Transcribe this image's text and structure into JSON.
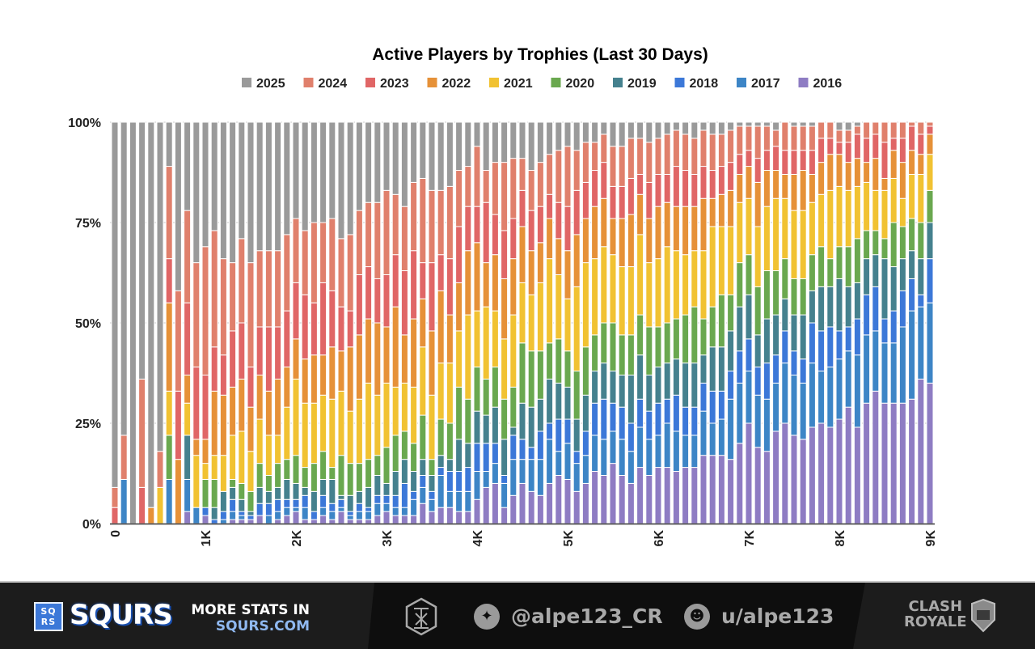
{
  "chart_data": {
    "type": "bar",
    "stacked": true,
    "normalized": true,
    "title": "Active Players by Trophies (Last 30 Days)",
    "xlabel": "",
    "ylabel": "",
    "ylim": [
      0,
      100
    ],
    "yticks": [
      "0%",
      "25%",
      "50%",
      "75%",
      "100%"
    ],
    "xticks": [
      "0",
      "1K",
      "2K",
      "3K",
      "4K",
      "5K",
      "6K",
      "7K",
      "8K",
      "9K"
    ],
    "x_range": [
      0,
      9000
    ],
    "x_step": 100,
    "grid": true,
    "legend_position": "top",
    "legend_order": [
      "2025",
      "2024",
      "2023",
      "2022",
      "2021",
      "2020",
      "2019",
      "2018",
      "2017",
      "2016"
    ],
    "series": [
      {
        "name": "2016",
        "color": "#8e7cc3",
        "values": [
          0,
          0,
          0,
          0,
          0,
          0,
          0,
          0,
          3,
          0,
          2,
          0,
          0,
          1,
          1,
          1,
          2,
          0,
          1,
          2,
          3,
          1,
          1,
          2,
          1,
          3,
          1,
          1,
          1,
          2,
          3,
          2,
          2,
          2,
          5,
          3,
          4,
          4,
          3,
          3,
          6,
          9,
          10,
          4,
          7,
          10,
          8,
          7,
          10,
          12,
          11,
          8,
          10,
          13,
          12,
          15,
          12,
          10,
          14,
          12,
          14,
          14,
          13,
          14,
          14,
          17,
          17,
          17,
          16,
          20,
          25,
          19,
          18,
          23,
          25,
          22,
          21,
          24,
          25,
          24,
          26,
          29,
          24,
          30,
          33,
          30,
          30,
          30,
          31,
          36,
          35
        ]
      },
      {
        "name": "2017",
        "color": "#3d85c6",
        "values": [
          0,
          11,
          0,
          0,
          0,
          0,
          11,
          0,
          8,
          4,
          0,
          0,
          1,
          2,
          1,
          0,
          0,
          2,
          2,
          2,
          1,
          3,
          0,
          2,
          2,
          1,
          1,
          2,
          2,
          3,
          2,
          2,
          2,
          4,
          4,
          3,
          8,
          4,
          5,
          5,
          7,
          4,
          5,
          6,
          9,
          6,
          8,
          9,
          11,
          6,
          9,
          7,
          7,
          9,
          9,
          8,
          9,
          8,
          10,
          9,
          8,
          11,
          10,
          8,
          8,
          11,
          8,
          9,
          15,
          15,
          13,
          13,
          13,
          12,
          15,
          15,
          14,
          16,
          13,
          15,
          15,
          14,
          18,
          17,
          15,
          15,
          15,
          19,
          22,
          18,
          20
        ]
      },
      {
        "name": "2018",
        "color": "#3c78d8",
        "values": [
          0,
          0,
          0,
          0,
          0,
          0,
          0,
          0,
          0,
          0,
          2,
          1,
          2,
          3,
          1,
          1,
          3,
          3,
          3,
          2,
          2,
          3,
          2,
          3,
          2,
          2,
          1,
          2,
          1,
          2,
          2,
          3,
          6,
          2,
          3,
          2,
          2,
          5,
          5,
          6,
          7,
          7,
          5,
          2,
          6,
          5,
          3,
          7,
          4,
          8,
          6,
          3,
          6,
          8,
          10,
          7,
          8,
          7,
          7,
          7,
          8,
          6,
          9,
          7,
          7,
          7,
          8,
          7,
          7,
          8,
          8,
          7,
          9,
          7,
          8,
          6,
          6,
          10,
          10,
          10,
          7,
          6,
          9,
          10,
          11,
          6,
          8,
          9,
          8,
          3,
          11
        ]
      },
      {
        "name": "2019",
        "color": "#45818e",
        "values": [
          0,
          0,
          0,
          0,
          0,
          0,
          0,
          0,
          11,
          0,
          0,
          3,
          5,
          3,
          3,
          1,
          4,
          3,
          3,
          5,
          4,
          2,
          5,
          4,
          6,
          1,
          4,
          3,
          5,
          5,
          3,
          6,
          6,
          5,
          4,
          4,
          3,
          3,
          8,
          6,
          8,
          7,
          9,
          9,
          2,
          9,
          10,
          8,
          11,
          9,
          8,
          8,
          9,
          8,
          9,
          8,
          8,
          12,
          11,
          9,
          9,
          9,
          9,
          11,
          11,
          7,
          11,
          11,
          10,
          11,
          11,
          8,
          11,
          10,
          8,
          9,
          11,
          8,
          11,
          10,
          13,
          10,
          9,
          9,
          8,
          15,
          11,
          8,
          7,
          9,
          9
        ]
      },
      {
        "name": "2020",
        "color": "#6aa84f",
        "values": [
          0,
          0,
          0,
          0,
          0,
          0,
          11,
          0,
          0,
          0,
          7,
          7,
          0,
          2,
          4,
          5,
          6,
          4,
          6,
          5,
          7,
          5,
          7,
          7,
          3,
          10,
          8,
          7,
          7,
          5,
          9,
          9,
          7,
          7,
          11,
          4,
          9,
          9,
          13,
          11,
          11,
          9,
          10,
          10,
          10,
          15,
          14,
          12,
          9,
          11,
          9,
          12,
          12,
          9,
          10,
          12,
          10,
          10,
          10,
          12,
          10,
          10,
          10,
          12,
          14,
          9,
          10,
          13,
          9,
          11,
          10,
          12,
          12,
          11,
          10,
          9,
          9,
          9,
          10,
          7,
          8,
          10,
          11,
          7,
          6,
          5,
          11,
          8,
          8,
          9,
          8
        ]
      },
      {
        "name": "2021",
        "color": "#f1c232",
        "values": [
          0,
          0,
          0,
          0,
          0,
          9,
          11,
          0,
          8,
          13,
          4,
          6,
          9,
          11,
          13,
          10,
          11,
          10,
          7,
          13,
          19,
          16,
          15,
          14,
          17,
          16,
          13,
          16,
          19,
          15,
          16,
          12,
          12,
          14,
          17,
          16,
          14,
          15,
          14,
          21,
          14,
          18,
          14,
          15,
          18,
          15,
          14,
          17,
          21,
          16,
          13,
          21,
          21,
          19,
          19,
          17,
          17,
          17,
          20,
          16,
          17,
          19,
          17,
          15,
          14,
          17,
          20,
          17,
          17,
          15,
          14,
          15,
          16,
          18,
          15,
          17,
          17,
          13,
          13,
          17,
          15,
          14,
          13,
          12,
          10,
          12,
          11,
          7,
          11,
          12,
          9
        ]
      },
      {
        "name": "2022",
        "color": "#e69138",
        "values": [
          0,
          0,
          0,
          0,
          4,
          0,
          22,
          16,
          7,
          4,
          6,
          16,
          15,
          12,
          13,
          11,
          11,
          11,
          14,
          10,
          10,
          11,
          12,
          10,
          13,
          10,
          16,
          16,
          16,
          18,
          14,
          20,
          12,
          17,
          12,
          16,
          18,
          12,
          12,
          16,
          17,
          11,
          14,
          15,
          14,
          14,
          11,
          10,
          10,
          9,
          12,
          13,
          11,
          13,
          12,
          9,
          12,
          13,
          10,
          11,
          13,
          11,
          11,
          12,
          11,
          13,
          7,
          8,
          9,
          7,
          8,
          11,
          9,
          7,
          6,
          9,
          10,
          7,
          8,
          9,
          8,
          7,
          7,
          5,
          8,
          3,
          7,
          9,
          6,
          5,
          5
        ]
      },
      {
        "name": "2023",
        "color": "#e06666",
        "values": [
          4,
          0,
          0,
          9,
          0,
          0,
          11,
          17,
          18,
          18,
          16,
          11,
          10,
          14,
          14,
          10,
          12,
          16,
          13,
          14,
          14,
          16,
          13,
          18,
          14,
          11,
          9,
          15,
          13,
          11,
          13,
          13,
          16,
          17,
          9,
          17,
          9,
          14,
          14,
          11,
          9,
          15,
          10,
          12,
          10,
          9,
          10,
          9,
          6,
          9,
          11,
          11,
          9,
          9,
          9,
          8,
          8,
          9,
          5,
          9,
          8,
          7,
          10,
          9,
          8,
          8,
          7,
          7,
          7,
          5,
          4,
          6,
          5,
          6,
          6,
          6,
          5,
          6,
          6,
          4,
          3,
          5,
          6,
          6,
          6,
          9,
          3,
          6,
          6,
          5,
          2
        ]
      },
      {
        "name": "2024",
        "color": "#e0806c",
        "values": [
          5,
          11,
          0,
          27,
          0,
          9,
          23,
          25,
          23,
          26,
          32,
          29,
          24,
          17,
          21,
          26,
          19,
          19,
          19,
          19,
          16,
          16,
          20,
          15,
          18,
          17,
          19,
          16,
          16,
          19,
          21,
          15,
          16,
          17,
          21,
          18,
          16,
          18,
          14,
          10,
          15,
          8,
          13,
          17,
          15,
          8,
          10,
          11,
          10,
          13,
          15,
          10,
          10,
          7,
          7,
          10,
          10,
          10,
          9,
          10,
          9,
          10,
          9,
          9,
          9,
          9,
          9,
          8,
          8,
          7,
          6,
          8,
          6,
          4,
          7,
          6,
          6,
          6,
          4,
          4,
          3,
          3,
          2,
          4,
          3,
          5,
          4,
          4,
          1,
          3,
          1
        ]
      },
      {
        "name": "2025",
        "color": "#9a9a9a",
        "values": [
          91,
          78,
          100,
          64,
          96,
          82,
          11,
          42,
          22,
          35,
          31,
          27,
          34,
          35,
          29,
          35,
          32,
          32,
          32,
          28,
          24,
          27,
          25,
          25,
          24,
          29,
          28,
          22,
          20,
          20,
          17,
          18,
          21,
          15,
          14,
          17,
          17,
          16,
          12,
          11,
          6,
          12,
          10,
          10,
          9,
          9,
          12,
          10,
          8,
          7,
          6,
          7,
          5,
          5,
          3,
          6,
          6,
          4,
          4,
          5,
          4,
          3,
          2,
          3,
          4,
          2,
          3,
          3,
          2,
          1,
          1,
          1,
          1,
          2,
          0,
          1,
          1,
          1,
          0,
          0,
          2,
          2,
          1,
          0,
          0,
          0,
          0,
          0,
          0,
          0,
          0
        ]
      }
    ]
  },
  "footer": {
    "brand_logo_text": "SQ RS",
    "brand_name": "SQURS",
    "more_stats_label": "MORE STATS IN",
    "more_stats_url": "SQURS.COM",
    "twitter_handle": "@alpe123_CR",
    "reddit_handle": "u/alpe123",
    "game_logo_text": "CLASH ROYALE",
    "icons": [
      "squrs-logo-icon",
      "author-emblem-icon",
      "twitter-icon",
      "reddit-icon",
      "clash-royale-logo"
    ]
  }
}
